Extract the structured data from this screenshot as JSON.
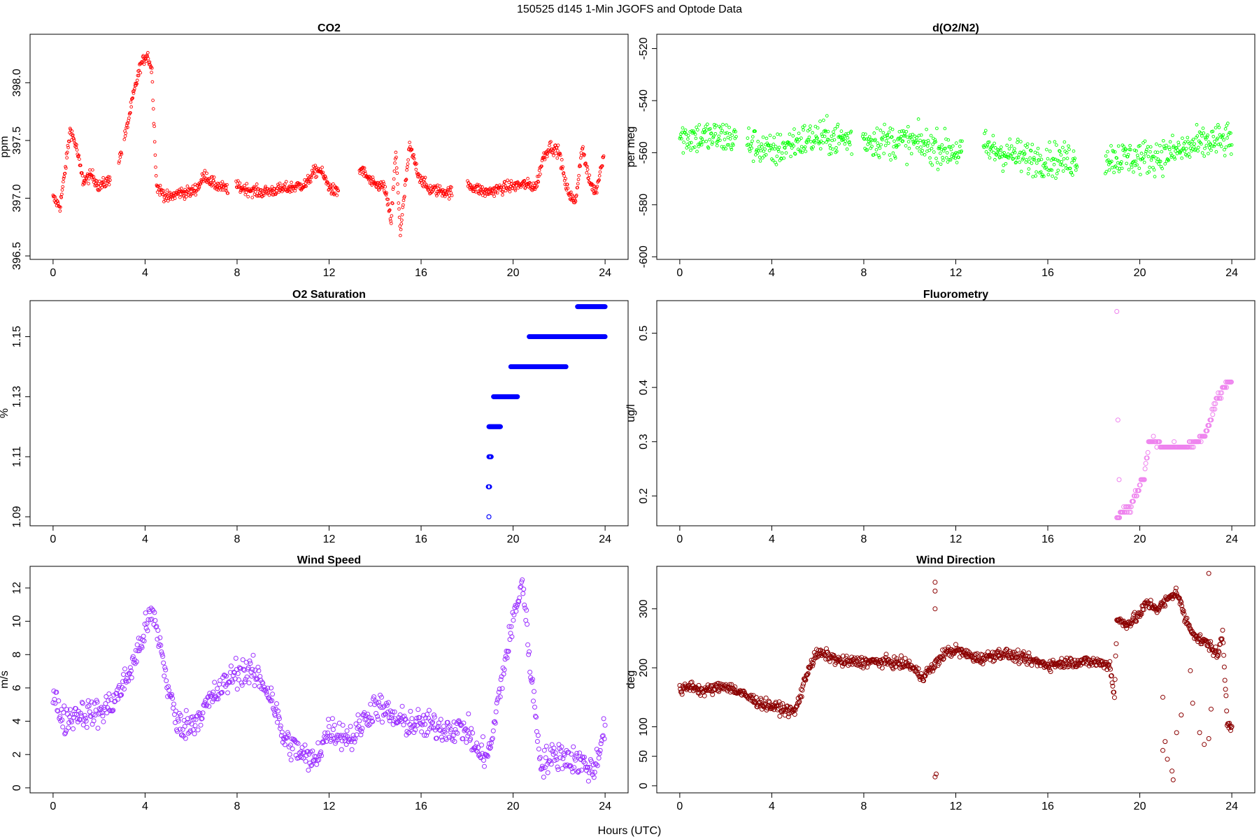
{
  "figure": {
    "title": "150525   d145   1-Min  JGOFS and Optode Data",
    "xlabel": "Hours (UTC)"
  },
  "chart_data": [
    {
      "id": "co2",
      "type": "scatter",
      "title": "CO2",
      "xlabel": "",
      "ylabel": "ppm",
      "xlim": [
        -1,
        25
      ],
      "ylim": [
        396.47,
        398.42
      ],
      "xticks": [
        0,
        4,
        8,
        12,
        16,
        20,
        24
      ],
      "yticks": [
        396.5,
        397.0,
        397.5,
        398.0
      ],
      "ytick_labels": [
        "396.5",
        "397.0",
        "397.5",
        "398.0"
      ],
      "color": "#ff0000",
      "marker": "small-open-circle",
      "grid": false,
      "legend": "none",
      "gaps": [
        [
          2.5,
          2.85
        ],
        [
          3.0,
          3.1
        ],
        [
          7.6,
          7.95
        ],
        [
          12.4,
          13.3
        ],
        [
          17.35,
          18.0
        ]
      ],
      "anchors": [
        [
          0,
          397.0
        ],
        [
          0.3,
          396.93
        ],
        [
          0.5,
          397.2
        ],
        [
          0.75,
          397.6
        ],
        [
          1.0,
          397.45
        ],
        [
          1.3,
          397.15
        ],
        [
          1.7,
          397.2
        ],
        [
          2.0,
          397.1
        ],
        [
          2.4,
          397.15
        ],
        [
          2.9,
          397.35
        ],
        [
          3.2,
          397.6
        ],
        [
          3.5,
          397.9
        ],
        [
          3.8,
          398.15
        ],
        [
          4.1,
          398.25
        ],
        [
          4.3,
          398.1
        ],
        [
          4.5,
          397.1
        ],
        [
          5.0,
          397.0
        ],
        [
          5.5,
          397.05
        ],
        [
          6.0,
          397.05
        ],
        [
          6.3,
          397.1
        ],
        [
          6.6,
          397.2
        ],
        [
          7.0,
          397.12
        ],
        [
          7.5,
          397.08
        ],
        [
          8.0,
          397.1
        ],
        [
          9.0,
          397.05
        ],
        [
          10.0,
          397.08
        ],
        [
          10.5,
          397.1
        ],
        [
          11.0,
          397.12
        ],
        [
          11.3,
          397.22
        ],
        [
          11.6,
          397.25
        ],
        [
          12.0,
          397.1
        ],
        [
          12.3,
          397.05
        ],
        [
          13.4,
          397.25
        ],
        [
          13.9,
          397.12
        ],
        [
          14.4,
          397.1
        ],
        [
          14.7,
          396.8
        ],
        [
          14.9,
          397.4
        ],
        [
          15.1,
          396.7
        ],
        [
          15.5,
          397.45
        ],
        [
          15.9,
          397.2
        ],
        [
          16.3,
          397.08
        ],
        [
          17.3,
          397.05
        ],
        [
          18.0,
          397.12
        ],
        [
          18.8,
          397.05
        ],
        [
          19.8,
          397.1
        ],
        [
          20.5,
          397.12
        ],
        [
          21.0,
          397.1
        ],
        [
          21.3,
          397.35
        ],
        [
          21.6,
          397.45
        ],
        [
          22.0,
          397.4
        ],
        [
          22.3,
          397.1
        ],
        [
          22.7,
          396.95
        ],
        [
          23.0,
          397.45
        ],
        [
          23.3,
          397.15
        ],
        [
          23.6,
          397.05
        ],
        [
          23.95,
          397.4
        ]
      ]
    },
    {
      "id": "do2n2",
      "type": "scatter",
      "title": "d(O2/N2)",
      "xlabel": "",
      "ylabel": "per meg",
      "xlim": [
        -1,
        25
      ],
      "ylim": [
        -601,
        -514.5
      ],
      "xticks": [
        0,
        4,
        8,
        12,
        16,
        20,
        24
      ],
      "yticks": [
        -600,
        -580,
        -560,
        -540,
        -520
      ],
      "ytick_labels": [
        "-600",
        "-580",
        "-560",
        "-540",
        "-520"
      ],
      "color": "#00ff00",
      "marker": "small-open-circle",
      "grid": false,
      "legend": "none",
      "gaps": [
        [
          2.45,
          2.9
        ],
        [
          7.5,
          7.95
        ],
        [
          12.3,
          13.2
        ],
        [
          17.3,
          18.5
        ]
      ],
      "anchors": [
        [
          0,
          -554
        ],
        [
          2.0,
          -554
        ],
        [
          3.0,
          -556
        ],
        [
          4.0,
          -560
        ],
        [
          5.0,
          -556
        ],
        [
          6.0,
          -554
        ],
        [
          7.4,
          -555
        ],
        [
          8.0,
          -555
        ],
        [
          10.0,
          -556
        ],
        [
          12.3,
          -560
        ],
        [
          13.2,
          -558
        ],
        [
          15.0,
          -562
        ],
        [
          17.2,
          -563
        ],
        [
          18.6,
          -562
        ],
        [
          20.0,
          -562
        ],
        [
          21.0,
          -561
        ],
        [
          22.2,
          -558
        ],
        [
          23.0,
          -556
        ],
        [
          24.0,
          -555
        ]
      ]
    },
    {
      "id": "o2sat",
      "type": "scatter",
      "title": "O2 Saturation",
      "xlabel": "",
      "ylabel": "%",
      "xlim": [
        -1,
        25
      ],
      "ylim": [
        1.087,
        1.162
      ],
      "xticks": [
        0,
        4,
        8,
        12,
        16,
        20,
        24
      ],
      "yticks": [
        1.09,
        1.11,
        1.13,
        1.15
      ],
      "ytick_labels": [
        "1.09",
        "1.11",
        "1.13",
        "1.15"
      ],
      "color": "#0000ff",
      "marker": "open-circle",
      "grid": false,
      "legend": "none",
      "segments": [
        {
          "y": 1.09,
          "x": [
            18.95,
            18.95
          ]
        },
        {
          "y": 1.1,
          "x": [
            18.92,
            18.98
          ]
        },
        {
          "y": 1.11,
          "x": [
            18.95,
            19.05
          ]
        },
        {
          "y": 1.12,
          "x": [
            18.95,
            19.45
          ]
        },
        {
          "y": 1.13,
          "x": [
            19.15,
            20.2
          ]
        },
        {
          "y": 1.14,
          "x": [
            19.9,
            22.3
          ]
        },
        {
          "y": 1.15,
          "x": [
            20.7,
            24.0
          ]
        },
        {
          "y": 1.16,
          "x": [
            22.8,
            24.0
          ]
        }
      ]
    },
    {
      "id": "fluor",
      "type": "scatter",
      "title": "Fluorometry",
      "xlabel": "",
      "ylabel": "ug/l",
      "xlim": [
        -1,
        25
      ],
      "ylim": [
        0.145,
        0.56
      ],
      "xticks": [
        0,
        4,
        8,
        12,
        16,
        20,
        24
      ],
      "yticks": [
        0.2,
        0.3,
        0.4,
        0.5
      ],
      "ytick_labels": [
        "0.2",
        "0.3",
        "0.4",
        "0.5"
      ],
      "color": "#ee82ee",
      "marker": "open-circle",
      "grid": false,
      "legend": "none",
      "outliers": [
        [
          19.0,
          0.54
        ],
        [
          19.05,
          0.34
        ],
        [
          19.1,
          0.23
        ]
      ],
      "anchors": [
        [
          19.0,
          0.16
        ],
        [
          19.3,
          0.17
        ],
        [
          19.6,
          0.18
        ],
        [
          19.9,
          0.21
        ],
        [
          20.2,
          0.24
        ],
        [
          20.4,
          0.3
        ],
        [
          20.7,
          0.3
        ],
        [
          21.0,
          0.29
        ],
        [
          21.5,
          0.29
        ],
        [
          22.0,
          0.29
        ],
        [
          22.4,
          0.3
        ],
        [
          22.8,
          0.31
        ],
        [
          23.0,
          0.33
        ],
        [
          23.2,
          0.36
        ],
        [
          23.5,
          0.39
        ],
        [
          23.8,
          0.41
        ],
        [
          24.0,
          0.41
        ]
      ]
    },
    {
      "id": "wspd",
      "type": "scatter",
      "title": "Wind Speed",
      "xlabel": "",
      "ylabel": "m/s",
      "xlim": [
        -1,
        25
      ],
      "ylim": [
        -0.3,
        13.3
      ],
      "xticks": [
        0,
        4,
        8,
        12,
        16,
        20,
        24
      ],
      "yticks": [
        0,
        2,
        4,
        6,
        8,
        10,
        12
      ],
      "ytick_labels": [
        "0",
        "2",
        "4",
        "6",
        "8",
        "10",
        "12"
      ],
      "color": "#9b30ff",
      "marker": "open-circle",
      "grid": false,
      "legend": "none",
      "anchors": [
        [
          0,
          5.5
        ],
        [
          0.5,
          4.0
        ],
        [
          1.0,
          4.5
        ],
        [
          2.0,
          4.5
        ],
        [
          2.5,
          5.0
        ],
        [
          3.0,
          6.0
        ],
        [
          3.5,
          7.5
        ],
        [
          4.0,
          9.5
        ],
        [
          4.3,
          10.5
        ],
        [
          4.6,
          9.0
        ],
        [
          5.0,
          6.0
        ],
        [
          5.4,
          3.8
        ],
        [
          6.0,
          3.8
        ],
        [
          7.0,
          5.5
        ],
        [
          8.0,
          7.0
        ],
        [
          8.5,
          7.0
        ],
        [
          9.0,
          6.5
        ],
        [
          9.5,
          5.5
        ],
        [
          10.0,
          3.0
        ],
        [
          11.0,
          1.8
        ],
        [
          11.3,
          1.5
        ],
        [
          12.0,
          3.5
        ],
        [
          13.0,
          3.0
        ],
        [
          14.0,
          5.0
        ],
        [
          14.5,
          4.5
        ],
        [
          15.0,
          4.0
        ],
        [
          16.0,
          3.8
        ],
        [
          17.0,
          3.6
        ],
        [
          18.0,
          3.5
        ],
        [
          18.5,
          2.0
        ],
        [
          19.0,
          2.2
        ],
        [
          19.5,
          6.5
        ],
        [
          20.0,
          10.0
        ],
        [
          20.4,
          12.5
        ],
        [
          20.7,
          8.0
        ],
        [
          21.0,
          4.0
        ],
        [
          21.2,
          1.5
        ],
        [
          22.0,
          2.0
        ],
        [
          23.0,
          1.5
        ],
        [
          23.5,
          1.0
        ],
        [
          24.0,
          3.8
        ]
      ]
    },
    {
      "id": "wdir",
      "type": "scatter",
      "title": "Wind Direction",
      "xlabel": "",
      "ylabel": "deg",
      "xlim": [
        -1,
        25
      ],
      "ylim": [
        -12,
        372
      ],
      "xticks": [
        0,
        4,
        8,
        12,
        16,
        20,
        24
      ],
      "yticks": [
        0,
        50,
        100,
        200,
        300
      ],
      "ytick_labels": [
        "0",
        "50",
        "100",
        "200",
        "300"
      ],
      "color": "#8b0000",
      "marker": "open-circle",
      "grid": false,
      "legend": "none",
      "outliers": [
        [
          11.1,
          15
        ],
        [
          11.15,
          20
        ],
        [
          11.1,
          345
        ],
        [
          11.1,
          330
        ],
        [
          11.1,
          300
        ],
        [
          21.0,
          60
        ],
        [
          21.1,
          75
        ],
        [
          21.2,
          45
        ],
        [
          21.4,
          25
        ],
        [
          21.45,
          10
        ],
        [
          21.6,
          90
        ],
        [
          21.0,
          150
        ],
        [
          21.8,
          120
        ],
        [
          22.3,
          140
        ],
        [
          22.6,
          90
        ],
        [
          22.8,
          70
        ],
        [
          23.0,
          80
        ],
        [
          23.0,
          360
        ],
        [
          23.1,
          130
        ],
        [
          22.2,
          195
        ]
      ],
      "anchors": [
        [
          0,
          160
        ],
        [
          0.5,
          170
        ],
        [
          1.0,
          160
        ],
        [
          1.5,
          165
        ],
        [
          2.0,
          170
        ],
        [
          2.5,
          160
        ],
        [
          3.0,
          150
        ],
        [
          3.5,
          140
        ],
        [
          4.0,
          135
        ],
        [
          4.5,
          130
        ],
        [
          5.0,
          125
        ],
        [
          5.3,
          160
        ],
        [
          5.6,
          200
        ],
        [
          6.0,
          225
        ],
        [
          6.5,
          220
        ],
        [
          7.0,
          210
        ],
        [
          8.0,
          210
        ],
        [
          9.0,
          210
        ],
        [
          10.0,
          205
        ],
        [
          10.5,
          185
        ],
        [
          11.0,
          200
        ],
        [
          11.5,
          225
        ],
        [
          12.0,
          230
        ],
        [
          13.0,
          215
        ],
        [
          14.0,
          225
        ],
        [
          15.0,
          215
        ],
        [
          16.0,
          205
        ],
        [
          17.0,
          210
        ],
        [
          18.0,
          210
        ],
        [
          18.7,
          205
        ],
        [
          18.9,
          150
        ],
        [
          19.0,
          280
        ],
        [
          19.5,
          275
        ],
        [
          20.0,
          290
        ],
        [
          20.3,
          310
        ],
        [
          20.8,
          300
        ],
        [
          21.2,
          315
        ],
        [
          21.6,
          330
        ],
        [
          22.0,
          280
        ],
        [
          22.5,
          250
        ],
        [
          23.0,
          240
        ],
        [
          23.4,
          220
        ],
        [
          23.6,
          260
        ],
        [
          23.8,
          110
        ],
        [
          24.0,
          100
        ]
      ]
    }
  ]
}
